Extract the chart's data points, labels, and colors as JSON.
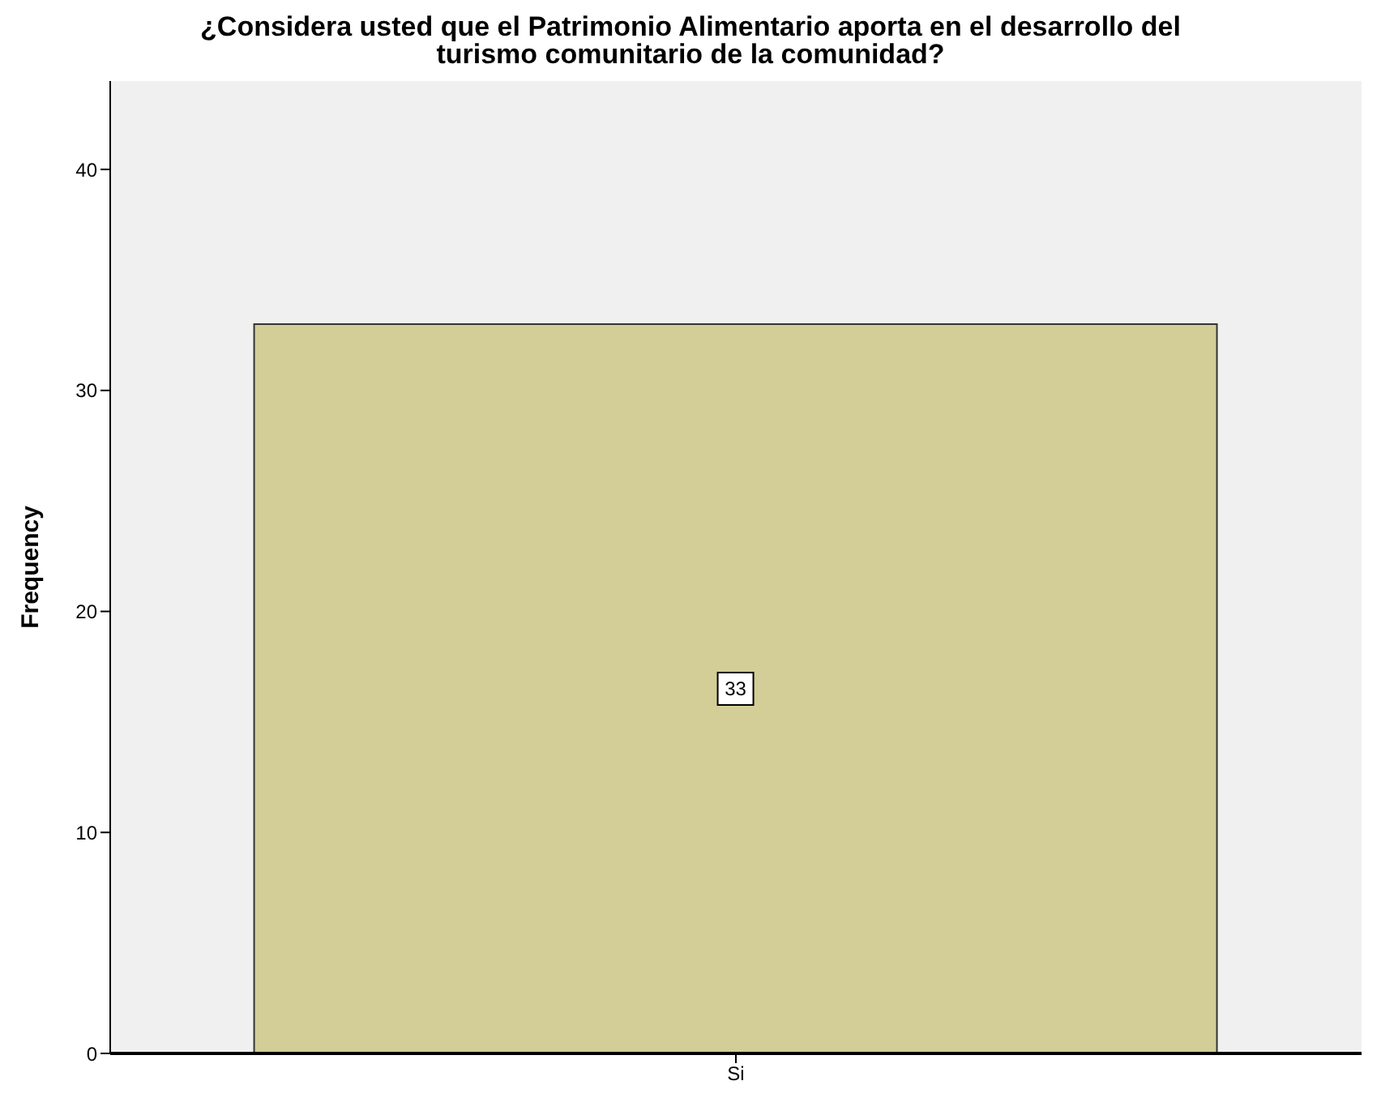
{
  "chart_data": {
    "type": "bar",
    "title": "¿Considera usted que el Patrimonio Alimentario aporta en el desarrollo del turismo comunitario de la comunidad?",
    "ylabel": "Frequency",
    "categories": [
      "Si"
    ],
    "values": [
      33
    ],
    "color": "#d3ce97",
    "ylim": [
      0,
      44
    ],
    "yticks": [
      0,
      10,
      20,
      30,
      40
    ],
    "grid": false,
    "data_labels": true
  }
}
